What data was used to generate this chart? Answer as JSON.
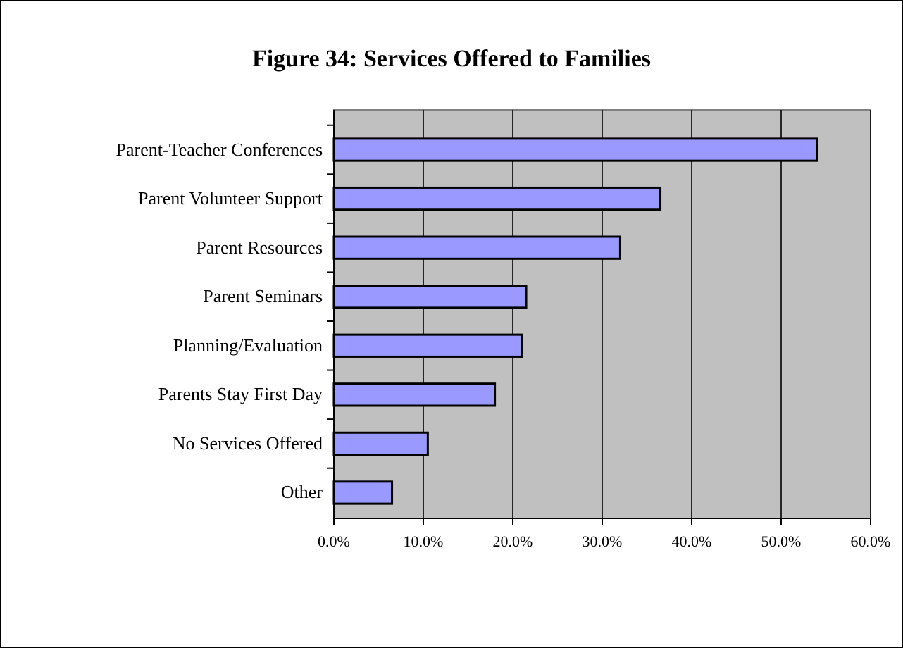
{
  "chart_data": {
    "type": "bar",
    "orientation": "horizontal",
    "title": "Figure 34: Services Offered to Families",
    "categories": [
      "Parent-Teacher Conferences",
      "Parent Volunteer Support",
      "Parent Resources",
      "Parent Seminars",
      "Planning/Evaluation",
      "Parents Stay First Day",
      "No Services Offered",
      "Other"
    ],
    "values": [
      54,
      36.5,
      32,
      21.5,
      21,
      18,
      10.5,
      6.5
    ],
    "color": "#9999ff",
    "xlim": [
      0,
      60
    ],
    "xticks": [
      {
        "value": 0,
        "label": "0.0%"
      },
      {
        "value": 10,
        "label": "10.0%"
      },
      {
        "value": 20,
        "label": "20.0%"
      },
      {
        "value": 30,
        "label": "30.0%"
      },
      {
        "value": 40,
        "label": "40.0%"
      },
      {
        "value": 50,
        "label": "50.0%"
      },
      {
        "value": 60,
        "label": "60.0%"
      }
    ],
    "grid": "x"
  }
}
